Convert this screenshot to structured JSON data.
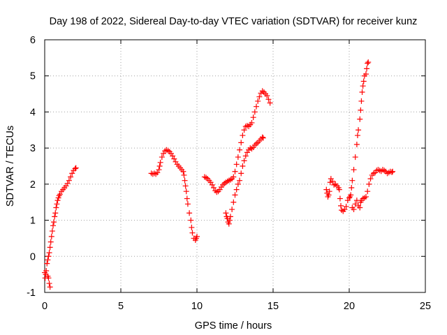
{
  "chart_data": {
    "type": "scatter",
    "title": "Day 198 of 2022, Sidereal Day-to-day VTEC variation (SDTVAR) for receiver kunz",
    "xlabel": "GPS time / hours",
    "ylabel": "SDTVAR / TECUs",
    "xlim": [
      0,
      25
    ],
    "ylim": [
      -1,
      6
    ],
    "xticks": [
      0,
      5,
      10,
      15,
      20,
      25
    ],
    "yticks": [
      -1,
      0,
      1,
      2,
      3,
      4,
      5,
      6
    ],
    "xtick_labels": [
      "0",
      "5",
      "10",
      "15",
      "20",
      "25"
    ],
    "ytick_labels": [
      "-1",
      "0",
      "1",
      "2",
      "3",
      "4",
      "5",
      "6"
    ],
    "grid": true,
    "marker": "+",
    "color": "#ff0000",
    "series": [
      {
        "points": [
          [
            0.0,
            -0.45
          ],
          [
            0.03,
            -0.6
          ],
          [
            0.07,
            -0.5
          ],
          [
            0.1,
            -0.4
          ],
          [
            0.15,
            -0.2
          ],
          [
            0.2,
            -0.55
          ],
          [
            0.25,
            -0.6
          ],
          [
            0.3,
            -0.75
          ],
          [
            0.35,
            -0.85
          ],
          [
            0.2,
            -0.1
          ],
          [
            0.25,
            0.0
          ],
          [
            0.3,
            0.1
          ],
          [
            0.35,
            0.25
          ],
          [
            0.4,
            0.4
          ],
          [
            0.45,
            0.55
          ],
          [
            0.5,
            0.7
          ],
          [
            0.55,
            0.85
          ],
          [
            0.6,
            0.95
          ],
          [
            0.65,
            1.1
          ],
          [
            0.7,
            1.2
          ],
          [
            0.75,
            1.35
          ],
          [
            0.8,
            1.45
          ],
          [
            0.85,
            1.55
          ],
          [
            0.9,
            1.62
          ],
          [
            0.95,
            1.68
          ],
          [
            1.0,
            1.72
          ],
          [
            1.1,
            1.8
          ],
          [
            1.2,
            1.85
          ],
          [
            1.3,
            1.9
          ],
          [
            1.4,
            1.95
          ],
          [
            1.5,
            2.02
          ],
          [
            1.6,
            2.1
          ],
          [
            1.7,
            2.2
          ],
          [
            1.8,
            2.3
          ],
          [
            1.9,
            2.38
          ],
          [
            2.0,
            2.43
          ],
          [
            2.05,
            2.45
          ]
        ]
      },
      {
        "points": [
          [
            7.0,
            2.3
          ],
          [
            7.1,
            2.28
          ],
          [
            7.2,
            2.3
          ],
          [
            7.3,
            2.28
          ],
          [
            7.4,
            2.32
          ],
          [
            7.5,
            2.4
          ],
          [
            7.55,
            2.5
          ],
          [
            7.6,
            2.6
          ],
          [
            7.7,
            2.75
          ],
          [
            7.8,
            2.85
          ],
          [
            7.9,
            2.92
          ],
          [
            8.0,
            2.95
          ],
          [
            8.1,
            2.93
          ],
          [
            8.2,
            2.9
          ],
          [
            8.3,
            2.85
          ],
          [
            8.4,
            2.78
          ],
          [
            8.5,
            2.7
          ],
          [
            8.6,
            2.62
          ],
          [
            8.7,
            2.55
          ],
          [
            8.8,
            2.5
          ],
          [
            8.9,
            2.45
          ],
          [
            9.0,
            2.4
          ],
          [
            9.1,
            2.35
          ],
          [
            9.15,
            2.25
          ],
          [
            9.2,
            2.1
          ],
          [
            9.25,
            1.95
          ],
          [
            9.3,
            1.8
          ],
          [
            9.35,
            1.6
          ],
          [
            9.4,
            1.45
          ],
          [
            9.5,
            1.2
          ],
          [
            9.6,
            1.0
          ],
          [
            9.65,
            0.8
          ],
          [
            9.7,
            0.65
          ],
          [
            9.8,
            0.5
          ],
          [
            9.9,
            0.45
          ],
          [
            9.95,
            0.5
          ],
          [
            10.0,
            0.55
          ]
        ]
      },
      {
        "points": [
          [
            10.5,
            2.2
          ],
          [
            10.6,
            2.18
          ],
          [
            10.7,
            2.15
          ],
          [
            10.8,
            2.1
          ],
          [
            10.9,
            2.05
          ],
          [
            11.0,
            1.98
          ],
          [
            11.1,
            1.9
          ],
          [
            11.2,
            1.82
          ],
          [
            11.3,
            1.78
          ],
          [
            11.4,
            1.8
          ],
          [
            11.5,
            1.85
          ],
          [
            11.6,
            1.92
          ],
          [
            11.7,
            1.98
          ],
          [
            11.8,
            2.02
          ],
          [
            11.9,
            2.05
          ],
          [
            12.0,
            2.08
          ],
          [
            12.1,
            2.1
          ],
          [
            12.2,
            2.12
          ],
          [
            12.3,
            2.15
          ],
          [
            12.4,
            2.2
          ],
          [
            12.5,
            2.35
          ],
          [
            12.6,
            2.55
          ],
          [
            12.7,
            2.75
          ],
          [
            12.8,
            2.95
          ],
          [
            12.9,
            3.15
          ],
          [
            13.0,
            3.35
          ],
          [
            13.1,
            3.5
          ],
          [
            13.2,
            3.6
          ],
          [
            13.3,
            3.62
          ],
          [
            13.4,
            3.6
          ],
          [
            13.5,
            3.65
          ],
          [
            13.6,
            3.7
          ],
          [
            13.7,
            3.85
          ],
          [
            13.8,
            4.0
          ],
          [
            13.9,
            4.15
          ],
          [
            14.0,
            4.3
          ],
          [
            14.1,
            4.42
          ],
          [
            14.2,
            4.52
          ],
          [
            14.3,
            4.58
          ],
          [
            14.4,
            4.55
          ],
          [
            14.5,
            4.5
          ],
          [
            14.6,
            4.45
          ],
          [
            14.7,
            4.35
          ],
          [
            14.8,
            4.25
          ],
          [
            11.9,
            1.2
          ],
          [
            11.95,
            1.1
          ],
          [
            12.0,
            1.05
          ],
          [
            12.05,
            0.95
          ],
          [
            12.1,
            0.9
          ],
          [
            12.15,
            1.0
          ],
          [
            12.2,
            1.1
          ],
          [
            12.3,
            1.3
          ],
          [
            12.4,
            1.5
          ],
          [
            12.5,
            1.7
          ],
          [
            12.6,
            1.85
          ],
          [
            12.7,
            2.0
          ],
          [
            12.8,
            2.1
          ],
          [
            12.9,
            2.3
          ],
          [
            13.0,
            2.5
          ],
          [
            13.1,
            2.65
          ],
          [
            13.2,
            2.78
          ],
          [
            13.3,
            2.88
          ],
          [
            13.4,
            2.95
          ],
          [
            13.5,
            3.0
          ],
          [
            13.6,
            2.98
          ],
          [
            13.7,
            3.02
          ],
          [
            13.8,
            3.08
          ],
          [
            13.9,
            3.12
          ],
          [
            14.0,
            3.15
          ],
          [
            14.1,
            3.2
          ],
          [
            14.2,
            3.25
          ],
          [
            14.3,
            3.3
          ],
          [
            14.35,
            3.28
          ]
        ]
      },
      {
        "points": [
          [
            18.5,
            1.85
          ],
          [
            18.55,
            1.75
          ],
          [
            18.6,
            1.65
          ],
          [
            18.65,
            1.7
          ],
          [
            18.7,
            1.8
          ],
          [
            18.75,
            2.05
          ],
          [
            18.8,
            2.15
          ],
          [
            18.9,
            2.08
          ],
          [
            19.0,
            1.98
          ],
          [
            19.1,
            2.0
          ],
          [
            19.2,
            1.95
          ],
          [
            19.3,
            1.9
          ],
          [
            19.35,
            1.85
          ],
          [
            19.4,
            1.6
          ],
          [
            19.45,
            1.4
          ],
          [
            19.5,
            1.28
          ],
          [
            19.6,
            1.25
          ],
          [
            19.7,
            1.3
          ],
          [
            19.8,
            1.38
          ],
          [
            19.9,
            1.55
          ],
          [
            20.0,
            1.62
          ],
          [
            20.05,
            1.65
          ],
          [
            20.1,
            1.7
          ],
          [
            20.15,
            1.9
          ],
          [
            20.2,
            2.1
          ],
          [
            20.3,
            2.4
          ],
          [
            20.4,
            2.75
          ],
          [
            20.5,
            3.1
          ],
          [
            20.55,
            3.35
          ],
          [
            20.6,
            3.5
          ],
          [
            20.7,
            3.8
          ],
          [
            20.75,
            4.05
          ],
          [
            20.8,
            4.3
          ],
          [
            20.85,
            4.55
          ],
          [
            20.9,
            4.72
          ],
          [
            20.95,
            4.85
          ],
          [
            21.0,
            5.0
          ],
          [
            21.1,
            5.05
          ],
          [
            21.15,
            5.2
          ],
          [
            21.2,
            5.35
          ],
          [
            21.25,
            5.38
          ],
          [
            20.2,
            1.35
          ],
          [
            20.3,
            1.3
          ],
          [
            20.4,
            1.45
          ],
          [
            20.5,
            1.55
          ],
          [
            20.6,
            1.4
          ],
          [
            20.7,
            1.35
          ],
          [
            20.75,
            1.5
          ],
          [
            20.8,
            1.55
          ],
          [
            20.9,
            1.6
          ],
          [
            21.0,
            1.62
          ],
          [
            21.1,
            1.65
          ],
          [
            21.2,
            1.8
          ],
          [
            21.3,
            2.0
          ],
          [
            21.4,
            2.15
          ],
          [
            21.5,
            2.25
          ],
          [
            21.6,
            2.3
          ],
          [
            21.7,
            2.32
          ],
          [
            21.8,
            2.38
          ],
          [
            21.9,
            2.4
          ],
          [
            22.0,
            2.38
          ],
          [
            22.1,
            2.36
          ],
          [
            22.2,
            2.4
          ],
          [
            22.3,
            2.38
          ],
          [
            22.4,
            2.35
          ],
          [
            22.5,
            2.3
          ],
          [
            22.6,
            2.32
          ],
          [
            22.7,
            2.35
          ],
          [
            22.8,
            2.33
          ],
          [
            22.85,
            2.35
          ]
        ]
      }
    ]
  }
}
